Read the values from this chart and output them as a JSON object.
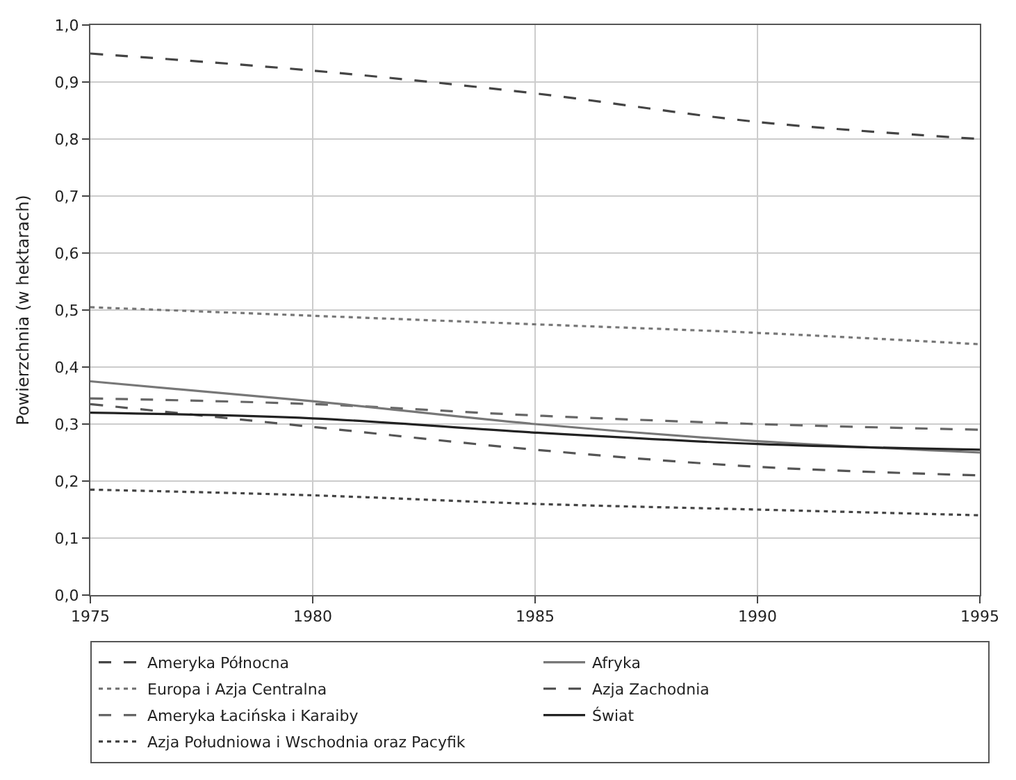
{
  "chart_data": {
    "type": "line",
    "ylabel": "Powierzchnia (w hektarach)",
    "x": [
      1975,
      1980,
      1985,
      1990,
      1995
    ],
    "series": [
      {
        "name": "Ameryka Północna",
        "color": "#444444",
        "line_style": "dashed",
        "values": [
          0.95,
          0.92,
          0.88,
          0.83,
          0.8
        ]
      },
      {
        "name": "Europa i Azja Centralna",
        "color": "#777777",
        "line_style": "dotted",
        "values": [
          0.505,
          0.49,
          0.475,
          0.46,
          0.44
        ]
      },
      {
        "name": "Ameryka Łacińska i Karaiby",
        "color": "#666666",
        "line_style": "dashed",
        "values": [
          0.345,
          0.335,
          0.315,
          0.3,
          0.29
        ]
      },
      {
        "name": "Azja Południowa i Wschodnia oraz Pacyfik",
        "color": "#444444",
        "line_style": "dotted",
        "values": [
          0.185,
          0.175,
          0.16,
          0.15,
          0.14
        ]
      },
      {
        "name": "Afryka",
        "color": "#777777",
        "line_style": "solid",
        "values": [
          0.375,
          0.34,
          0.3,
          0.27,
          0.25
        ]
      },
      {
        "name": "Azja Zachodnia",
        "color": "#555555",
        "line_style": "dashed",
        "values": [
          0.335,
          0.295,
          0.255,
          0.225,
          0.21
        ]
      },
      {
        "name": "Świat",
        "color": "#222222",
        "line_style": "solid",
        "values": [
          0.32,
          0.31,
          0.285,
          0.265,
          0.255
        ]
      }
    ],
    "xlim": [
      1975,
      1995
    ],
    "xticks": [
      1975,
      1980,
      1985,
      1990,
      1995
    ],
    "ylim": [
      0,
      1
    ],
    "yticks": [
      {
        "value": 0,
        "label": "0,0"
      },
      {
        "value": 0.1,
        "label": "0,1"
      },
      {
        "value": 0.2,
        "label": "0,2"
      },
      {
        "value": 0.3,
        "label": "0,3"
      },
      {
        "value": 0.4,
        "label": "0,4"
      },
      {
        "value": 0.5,
        "label": "0,5"
      },
      {
        "value": 0.6,
        "label": "0,6"
      },
      {
        "value": 0.7,
        "label": "0,7"
      },
      {
        "value": 0.8,
        "label": "0,8"
      },
      {
        "value": 0.9,
        "label": "0,9"
      },
      {
        "value": 1,
        "label": "1,0"
      }
    ],
    "grid": true,
    "legend": "bottom",
    "marker": "none"
  }
}
